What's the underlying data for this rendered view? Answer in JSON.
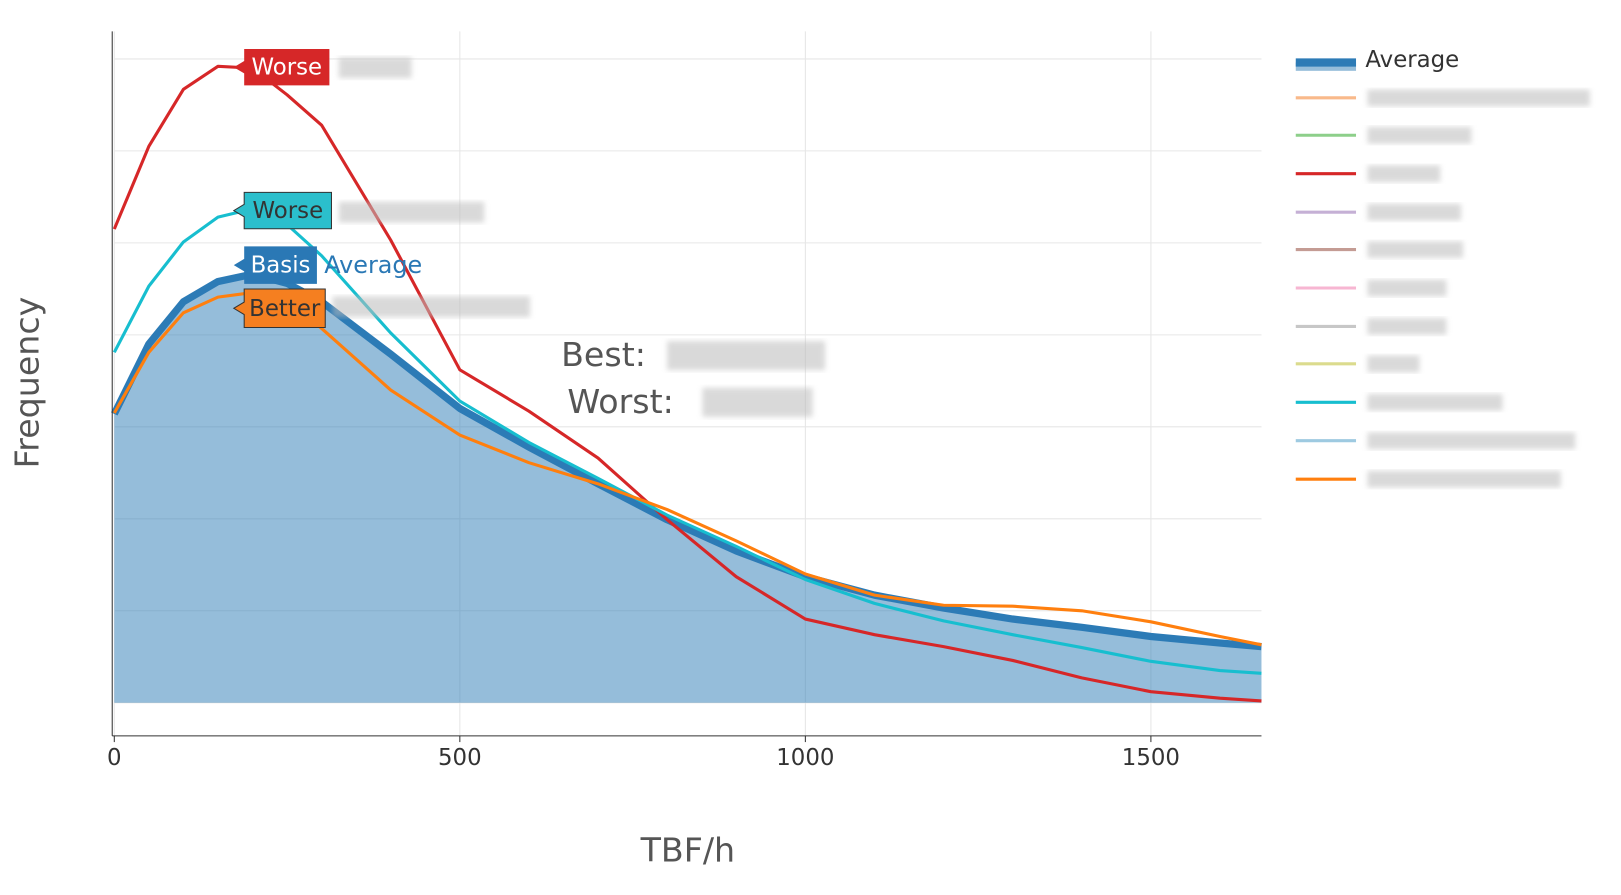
{
  "chart_data": {
    "type": "line",
    "x_label": "TBF/h",
    "y_label": "Frequency",
    "xlim": [
      0,
      1660
    ],
    "xticks": [
      0,
      500,
      1000,
      1500
    ],
    "ylim": [
      -0.36,
      7.3
    ],
    "yticks": [
      0,
      1,
      2,
      3,
      4,
      5,
      6,
      7
    ],
    "grid": true,
    "x": [
      0,
      50,
      100,
      150,
      200,
      250,
      300,
      400,
      500,
      600,
      700,
      800,
      900,
      1000,
      1100,
      1200,
      1300,
      1400,
      1500,
      1600,
      1660
    ],
    "series": [
      {
        "name": "Average",
        "color": "#2c7bb6",
        "fill": true,
        "values": [
          3.14,
          3.9,
          4.36,
          4.58,
          4.66,
          4.56,
          4.36,
          3.79,
          3.2,
          2.78,
          2.38,
          1.99,
          1.65,
          1.37,
          1.17,
          1.03,
          0.91,
          0.82,
          0.72,
          0.65,
          0.61
        ]
      },
      {
        "color": "#d62728",
        "values": [
          5.15,
          6.05,
          6.67,
          6.92,
          6.9,
          6.61,
          6.28,
          5.03,
          3.62,
          3.17,
          2.66,
          1.99,
          1.37,
          0.91,
          0.74,
          0.61,
          0.46,
          0.27,
          0.12,
          0.05,
          0.02
        ]
      },
      {
        "color": "#17becf",
        "values": [
          3.81,
          4.53,
          5.01,
          5.28,
          5.37,
          5.2,
          4.86,
          4.02,
          3.28,
          2.83,
          2.44,
          2.04,
          1.7,
          1.34,
          1.08,
          0.89,
          0.74,
          0.6,
          0.45,
          0.35,
          0.32
        ]
      },
      {
        "color": "#ff7f0e",
        "values": [
          3.15,
          3.81,
          4.24,
          4.41,
          4.46,
          4.36,
          4.07,
          3.4,
          2.91,
          2.61,
          2.38,
          2.1,
          1.76,
          1.4,
          1.17,
          1.06,
          1.05,
          1.0,
          0.88,
          0.72,
          0.63
        ]
      }
    ],
    "annotations": [
      {
        "text": "Worse",
        "color": "#d62728"
      },
      {
        "text": "Worse",
        "color": "#2bbfcc"
      },
      {
        "text": "Basis",
        "color": "#2a78b5"
      },
      {
        "text": "Average",
        "color": "#2a78b5"
      },
      {
        "text": "Better",
        "color": "#f57f20"
      },
      {
        "text": "Best:"
      },
      {
        "text": "Worst:"
      }
    ]
  }
}
